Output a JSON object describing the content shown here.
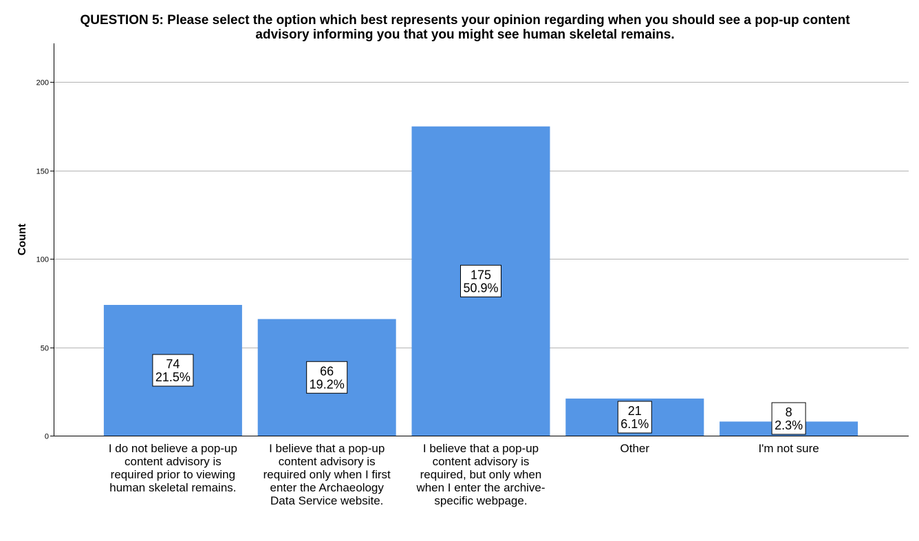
{
  "title_lines": [
    "QUESTION 5: Please select the option which best represents your opinion regarding when you should see a pop-up content",
    "advisory informing you that you might see human skeletal remains."
  ],
  "chart_data": {
    "type": "bar",
    "title": "QUESTION 5: Please select the option which best represents your opinion regarding when you should see a pop-up content advisory informing you that you might see human skeletal remains.",
    "xlabel": "",
    "ylabel": "Count",
    "ylim": [
      0,
      222
    ],
    "yticks": [
      0,
      50,
      100,
      150,
      200
    ],
    "grid": true,
    "bar_color": "#5596E6",
    "categories": [
      [
        "I do not believe a pop-up",
        "content advisory is",
        "required prior to viewing",
        "human skeletal remains."
      ],
      [
        "I believe that a pop-up",
        "content advisory is",
        "required only when I first",
        "enter the Archaeology",
        "Data Service website."
      ],
      [
        "I believe that a pop-up",
        "content advisory is",
        "required, but only when",
        "when I enter the archive-",
        "specific webpage."
      ],
      [
        "Other"
      ],
      [
        "I'm not sure"
      ]
    ],
    "values": [
      74,
      66,
      175,
      21,
      8
    ],
    "percent_labels": [
      "21.5%",
      "19.2%",
      "50.9%",
      "6.1%",
      "2.3%"
    ],
    "count_labels": [
      "74",
      "66",
      "175",
      "21",
      "8"
    ]
  }
}
